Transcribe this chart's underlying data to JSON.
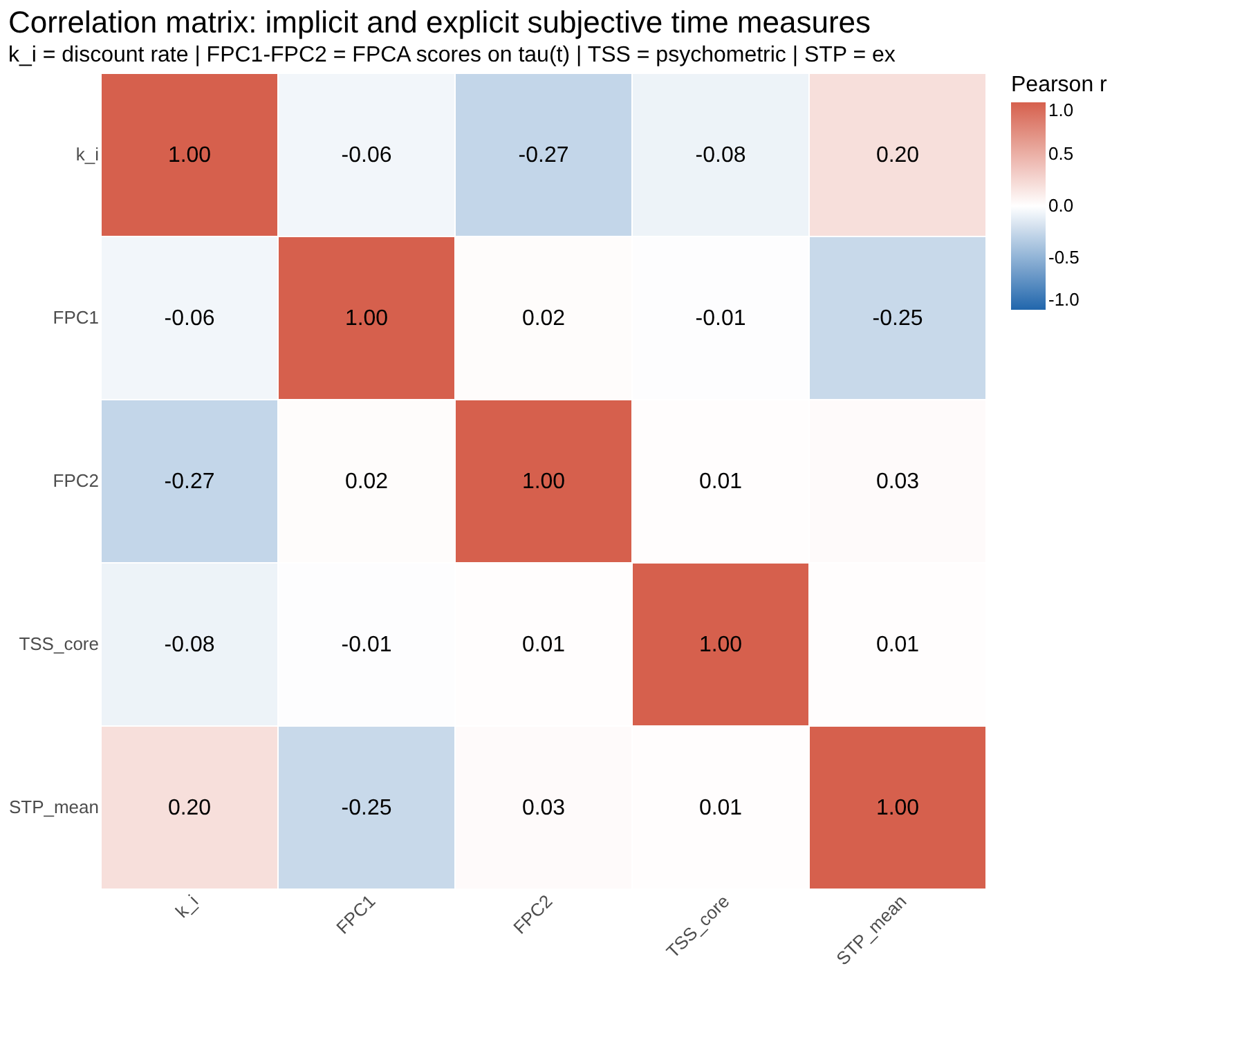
{
  "chart_data": {
    "type": "heatmap",
    "title": "Correlation matrix: implicit and explicit subjective time measures",
    "subtitle": "k_i = discount rate | FPC1-FPC2 = FPCA scores on tau(t) | TSS = psychometric | STP = ex",
    "categories": [
      "k_i",
      "FPC1",
      "FPC2",
      "TSS_core",
      "STP_mean"
    ],
    "y_categories": [
      "k_i",
      "FPC1",
      "FPC2",
      "TSS_core",
      "STP_mean"
    ],
    "cells": [
      [
        1.0,
        -0.06,
        -0.27,
        -0.08,
        0.2
      ],
      [
        -0.06,
        1.0,
        0.02,
        -0.01,
        -0.25
      ],
      [
        -0.27,
        0.02,
        1.0,
        0.01,
        0.03
      ],
      [
        -0.08,
        -0.01,
        0.01,
        1.0,
        0.01
      ],
      [
        0.2,
        -0.25,
        0.03,
        0.01,
        1.0
      ]
    ],
    "legend_title": "Pearson r",
    "clim": [
      -1.0,
      1.0
    ],
    "cticks": [
      {
        "value": -1,
        "label": "-1.0"
      },
      {
        "value": -0.5,
        "label": "-0.5"
      },
      {
        "value": 0,
        "label": "0.0"
      },
      {
        "value": 0.5,
        "label": "0.5"
      },
      {
        "value": 1,
        "label": "1.0"
      }
    ],
    "colors": [
      "#2166ac",
      "#ffffff",
      "#d6604d"
    ],
    "cell_labels": [
      [
        "1.00",
        "-0.06",
        "-0.27",
        "-0.08",
        "0.20"
      ],
      [
        "-0.06",
        "1.00",
        "0.02",
        "-0.01",
        "-0.25"
      ],
      [
        "-0.27",
        "0.02",
        "1.00",
        "0.01",
        "0.03"
      ],
      [
        "-0.08",
        "-0.01",
        "0.01",
        "1.00",
        "0.01"
      ],
      [
        "0.20",
        "-0.25",
        "0.03",
        "0.01",
        "1.00"
      ]
    ],
    "grid": false
  }
}
